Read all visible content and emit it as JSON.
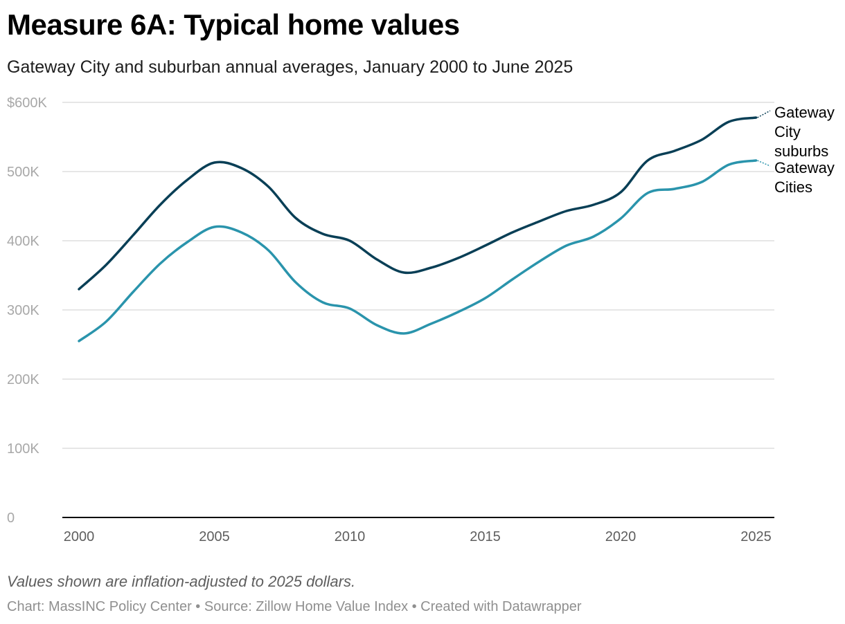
{
  "header": {
    "title": "Measure 6A: Typical home values",
    "subtitle": "Gateway City and suburban annual averages, January 2000 to June 2025"
  },
  "note": "Values shown are inflation-adjusted to 2025 dollars.",
  "footer": {
    "source": "Chart: MassINC Policy Center • Source: Zillow Home Value Index • Created with Datawrapper"
  },
  "colors": {
    "suburbs": "#093f56",
    "cities": "#2a94ac",
    "grid": "#dedede",
    "baseline": "#000000"
  },
  "chart_data": {
    "type": "line",
    "title": "Measure 6A: Typical home values",
    "subtitle": "Gateway City and suburban annual averages, January 2000 to June 2025",
    "xlabel": "",
    "ylabel": "",
    "xlim": [
      2000,
      2025.5
    ],
    "ylim": [
      0,
      600000
    ],
    "grid": true,
    "legend": "direct labels at line ends (right)",
    "x_ticks": [
      2000,
      2005,
      2010,
      2015,
      2020,
      2025
    ],
    "x_tick_labels": [
      "2000",
      "2005",
      "2010",
      "2015",
      "2020",
      "2025"
    ],
    "y_ticks": [
      0,
      100000,
      200000,
      300000,
      400000,
      500000,
      600000
    ],
    "y_tick_labels": [
      "0",
      "100K",
      "200K",
      "300K",
      "400K",
      "500K",
      "$600K"
    ],
    "series": [
      {
        "name": "Gateway City suburbs",
        "label_lines": [
          "Gateway",
          "City",
          "suburbs"
        ],
        "color": "#093f56",
        "points": [
          [
            2000,
            330000
          ],
          [
            2001,
            365000
          ],
          [
            2002,
            408000
          ],
          [
            2003,
            452000
          ],
          [
            2004,
            488000
          ],
          [
            2005,
            513000
          ],
          [
            2006,
            505000
          ],
          [
            2007,
            478000
          ],
          [
            2008,
            433000
          ],
          [
            2009,
            410000
          ],
          [
            2010,
            400000
          ],
          [
            2011,
            373000
          ],
          [
            2012,
            354000
          ],
          [
            2013,
            361000
          ],
          [
            2014,
            375000
          ],
          [
            2015,
            393000
          ],
          [
            2016,
            412000
          ],
          [
            2017,
            428000
          ],
          [
            2018,
            443000
          ],
          [
            2019,
            452000
          ],
          [
            2020,
            470000
          ],
          [
            2021,
            516000
          ],
          [
            2022,
            530000
          ],
          [
            2023,
            546000
          ],
          [
            2024,
            572000
          ],
          [
            2025,
            578000
          ]
        ]
      },
      {
        "name": "Gateway Cities",
        "label_lines": [
          "Gateway",
          "Cities"
        ],
        "color": "#2a94ac",
        "points": [
          [
            2000,
            255000
          ],
          [
            2001,
            283000
          ],
          [
            2002,
            326000
          ],
          [
            2003,
            367000
          ],
          [
            2004,
            398000
          ],
          [
            2005,
            420000
          ],
          [
            2006,
            412000
          ],
          [
            2007,
            386000
          ],
          [
            2008,
            340000
          ],
          [
            2009,
            311000
          ],
          [
            2010,
            302000
          ],
          [
            2011,
            278000
          ],
          [
            2012,
            266000
          ],
          [
            2013,
            280000
          ],
          [
            2014,
            297000
          ],
          [
            2015,
            317000
          ],
          [
            2016,
            344000
          ],
          [
            2017,
            370000
          ],
          [
            2018,
            393000
          ],
          [
            2019,
            406000
          ],
          [
            2020,
            432000
          ],
          [
            2021,
            469000
          ],
          [
            2022,
            475000
          ],
          [
            2023,
            485000
          ],
          [
            2024,
            510000
          ],
          [
            2025,
            516000
          ]
        ]
      }
    ]
  }
}
